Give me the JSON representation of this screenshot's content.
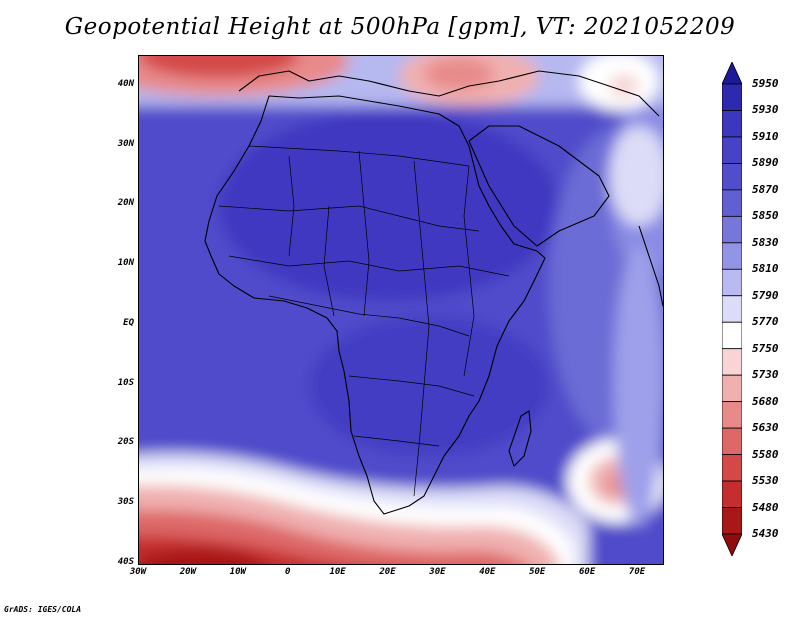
{
  "title": "Geopotential Height at 500hPa [gpm], VT: 2021052209",
  "credit": "GrADS: IGES/COLA",
  "map": {
    "lon_range": [
      -30,
      75
    ],
    "lat_range": [
      -40,
      45
    ],
    "lat_ticks": [
      {
        "value": 40,
        "label": "40N"
      },
      {
        "value": 30,
        "label": "30N"
      },
      {
        "value": 20,
        "label": "20N"
      },
      {
        "value": 10,
        "label": "10N"
      },
      {
        "value": 0,
        "label": "EQ"
      },
      {
        "value": -10,
        "label": "10S"
      },
      {
        "value": -20,
        "label": "20S"
      },
      {
        "value": -30,
        "label": "30S"
      },
      {
        "value": -40,
        "label": "40S"
      }
    ],
    "lon_ticks": [
      {
        "value": -30,
        "label": "30W"
      },
      {
        "value": -20,
        "label": "20W"
      },
      {
        "value": -10,
        "label": "10W"
      },
      {
        "value": 0,
        "label": "0"
      },
      {
        "value": 10,
        "label": "10E"
      },
      {
        "value": 20,
        "label": "20E"
      },
      {
        "value": 30,
        "label": "30E"
      },
      {
        "value": 40,
        "label": "40E"
      },
      {
        "value": 50,
        "label": "50E"
      },
      {
        "value": 60,
        "label": "60E"
      },
      {
        "value": 70,
        "label": "70E"
      }
    ]
  },
  "colorbar": {
    "levels": [
      5950,
      5930,
      5910,
      5890,
      5870,
      5850,
      5830,
      5810,
      5790,
      5770,
      5750,
      5730,
      5680,
      5630,
      5580,
      5530,
      5480,
      5430
    ],
    "colors": [
      "#1c1a9a",
      "#2e2ab0",
      "#3c37bf",
      "#4742c6",
      "#524ecb",
      "#6060d2",
      "#7676db",
      "#9294e6",
      "#b8baf1",
      "#dcdcf8",
      "#ffffff",
      "#f8d4d4",
      "#f0b0b0",
      "#e88a8a",
      "#de6868",
      "#d44848",
      "#c42e2e",
      "#a81818",
      "#8e0c0c"
    ]
  }
}
